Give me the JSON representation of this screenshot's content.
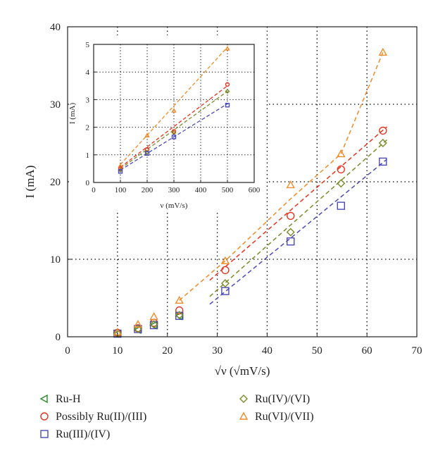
{
  "chart_data": [
    {
      "type": "scatter",
      "xlabel": "√ν (√mV/s)",
      "ylabel": "I (mA)",
      "xlim": [
        0,
        70
      ],
      "ylim": [
        0,
        40
      ],
      "xticks": [
        0,
        10,
        20,
        30,
        40,
        50,
        60,
        70
      ],
      "yticks": [
        0,
        10,
        20,
        30,
        40
      ],
      "grid": "dotted",
      "legend_position": "below",
      "series": [
        {
          "name": "Ru-H",
          "marker": "triangle-left",
          "color": "#2e8b2e",
          "x": [
            10,
            14.1,
            17.3,
            22.4
          ],
          "y": [
            0.4,
            0.9,
            1.5,
            2.7
          ]
        },
        {
          "name": "Possibly Ru(II)/(III)",
          "marker": "circle",
          "color": "#e8321e",
          "x": [
            10,
            14.1,
            17.3,
            22.4,
            31.6,
            44.7,
            54.8,
            63.2
          ],
          "y": [
            0.5,
            1.1,
            1.8,
            3.4,
            8.6,
            15.6,
            21.6,
            26.6
          ],
          "fit": {
            "x": [
              28.5,
              64
            ],
            "y": [
              7.3,
              27.1
            ]
          }
        },
        {
          "name": "Ru(III)/(IV)",
          "marker": "square",
          "color": "#4a4ab8",
          "x": [
            10,
            14.1,
            17.3,
            22.4,
            31.6,
            44.7,
            54.8,
            63.2
          ],
          "y": [
            0.4,
            1.0,
            1.5,
            2.7,
            5.9,
            12.3,
            16.9,
            22.6
          ],
          "fit": {
            "x": [
              28.5,
              64
            ],
            "y": [
              4.2,
              22.9
            ]
          }
        },
        {
          "name": "Ru(IV)/(VI)",
          "marker": "diamond",
          "color": "#7c8a28",
          "x": [
            10,
            14.1,
            17.3,
            22.4,
            31.6,
            44.7,
            54.8,
            63.2
          ],
          "y": [
            0.45,
            1.0,
            1.6,
            2.8,
            6.9,
            13.5,
            19.8,
            25.0
          ],
          "fit": {
            "x": [
              28.5,
              64
            ],
            "y": [
              5.2,
              25.4
            ]
          }
        },
        {
          "name": "Ru(VI)/(VII)",
          "marker": "triangle-up",
          "color": "#f08c28",
          "x": [
            10,
            14.1,
            17.3,
            22.4,
            31.6,
            44.7,
            54.8,
            63.2
          ],
          "y": [
            0.6,
            1.6,
            2.6,
            4.7,
            9.8,
            19.6,
            23.6,
            36.7
          ],
          "fit": {
            "x": [
              22.4,
              31.6,
              44.7,
              54.8,
              63.2
            ],
            "y": [
              4.7,
              9.8,
              17.8,
              23.6,
              36.7
            ]
          }
        }
      ]
    },
    {
      "type": "scatter",
      "inset": true,
      "xlabel": "ν (mV/s)",
      "ylabel": "I (mA)",
      "xlim": [
        0,
        600
      ],
      "ylim": [
        0,
        5
      ],
      "xticks": [
        0,
        100,
        200,
        300,
        400,
        500,
        600
      ],
      "yticks": [
        0,
        1,
        2,
        3,
        4,
        5
      ],
      "grid": "dotted",
      "series": [
        {
          "marker": "triangle-up",
          "color": "#f08c28",
          "x": [
            100,
            200,
            300,
            500
          ],
          "y": [
            0.6,
            1.7,
            2.6,
            4.85
          ],
          "fit": {
            "x": [
              100,
              500
            ],
            "y": [
              0.65,
              4.9
            ]
          }
        },
        {
          "marker": "circle",
          "color": "#e8321e",
          "x": [
            100,
            200,
            300,
            500
          ],
          "y": [
            0.5,
            1.2,
            1.85,
            3.55
          ],
          "fit": {
            "x": [
              100,
              500
            ],
            "y": [
              0.55,
              3.5
            ]
          }
        },
        {
          "marker": "diamond",
          "color": "#7c8a28",
          "x": [
            100,
            200,
            300,
            500
          ],
          "y": [
            0.45,
            1.1,
            1.8,
            3.3
          ],
          "fit": {
            "x": [
              100,
              500
            ],
            "y": [
              0.5,
              3.3
            ]
          }
        },
        {
          "marker": "square",
          "color": "#4a4ab8",
          "x": [
            100,
            200,
            300,
            500
          ],
          "y": [
            0.4,
            1.05,
            1.65,
            2.8
          ],
          "fit": {
            "x": [
              100,
              500
            ],
            "y": [
              0.45,
              2.85
            ]
          }
        }
      ]
    }
  ]
}
